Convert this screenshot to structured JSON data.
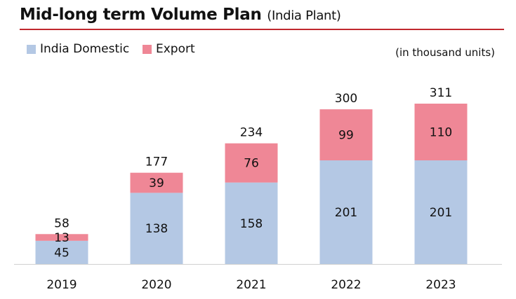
{
  "title": "Mid-long term Volume Plan",
  "subtitle": "(India Plant)",
  "unit_note": "(in thousand units)",
  "colors": {
    "domestic": "#b4c8e4",
    "export": "#ef8796",
    "rule": "#c0282e"
  },
  "chart_data": {
    "type": "bar",
    "stacked": true,
    "categories": [
      "2019",
      "2020",
      "2021",
      "2022",
      "2023"
    ],
    "series": [
      {
        "name": "India Domestic",
        "values": [
          45,
          138,
          158,
          201,
          201
        ]
      },
      {
        "name": "Export",
        "values": [
          13,
          39,
          76,
          99,
          110
        ]
      }
    ],
    "totals": [
      58,
      177,
      234,
      300,
      311
    ],
    "legend": "top-left",
    "grid": false
  }
}
